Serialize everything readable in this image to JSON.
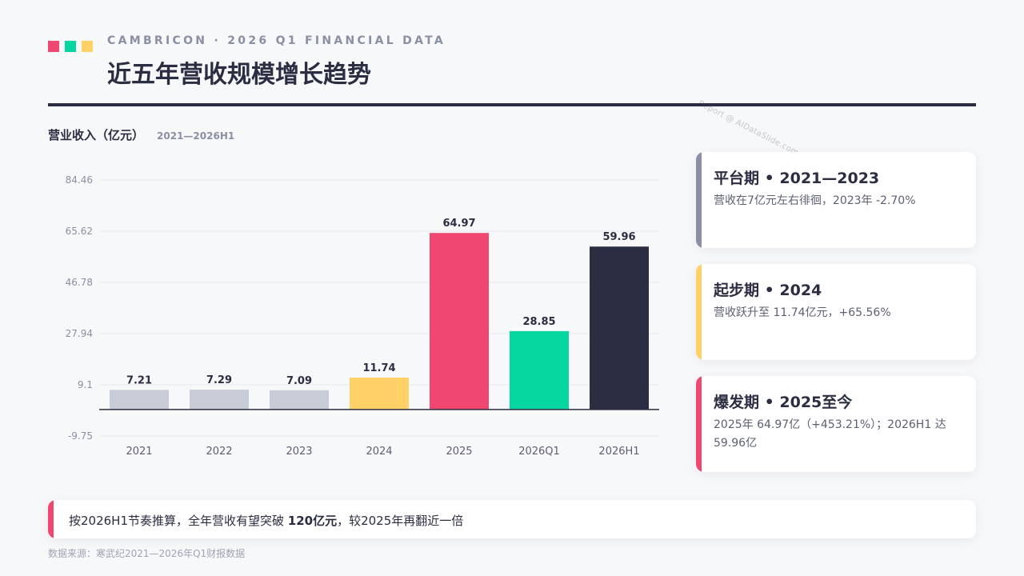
{
  "header": {
    "eyebrow": "CAMBRICON · 2026 Q1 FINANCIAL DATA",
    "title": "近五年营收规模增长趋势",
    "watermark": "Report @ AIDataSlide.com",
    "square_colors": [
      "#ef476f",
      "#06d6a0",
      "#ffd166"
    ]
  },
  "chart_header": {
    "title": "营业收入（亿元）",
    "range": "2021—2026H1"
  },
  "chart_data": {
    "type": "bar",
    "categories": [
      "2021",
      "2022",
      "2023",
      "2024",
      "2025",
      "2026Q1",
      "2026H1"
    ],
    "values": [
      7.21,
      7.29,
      7.09,
      11.74,
      64.97,
      28.85,
      59.96
    ],
    "value_labels": [
      "7.21",
      "7.29",
      "7.09",
      "11.74",
      "64.97",
      "28.85",
      "59.96"
    ],
    "colors": [
      "#c8ccd6",
      "#c8ccd6",
      "#c8ccd6",
      "#ffd166",
      "#ef476f",
      "#06d6a0",
      "#2b2d42"
    ],
    "y_ticks": [
      -9.75,
      9.1,
      27.94,
      46.78,
      65.62,
      84.46
    ],
    "y_tick_labels": [
      "-9.75",
      "9.1",
      "27.94",
      "46.78",
      "65.62",
      "84.46"
    ],
    "ylim": [
      -9.75,
      84.46
    ],
    "grid": true,
    "title": "",
    "xlabel": "",
    "ylabel": ""
  },
  "cards": [
    {
      "title": "平台期 • 2021—2023",
      "desc": "营收在7亿元左右徘徊，2023年 -2.70%",
      "color": "#8a8fa3"
    },
    {
      "title": "起步期 • 2024",
      "desc": "营收跃升至 11.74亿元，+65.56%",
      "color": "#ffd166"
    },
    {
      "title": "爆发期 • 2025至今",
      "desc": "2025年 64.97亿（+453.21%）；2026H1 达 59.96亿",
      "color": "#ef476f"
    }
  ],
  "note": {
    "prefix": "按2026H1节奏推算，全年营收有望突破 ",
    "highlight": "120亿元",
    "suffix": "，较2025年再翻近一倍"
  },
  "source": "数据来源：寒武纪2021—2026年Q1财报数据"
}
